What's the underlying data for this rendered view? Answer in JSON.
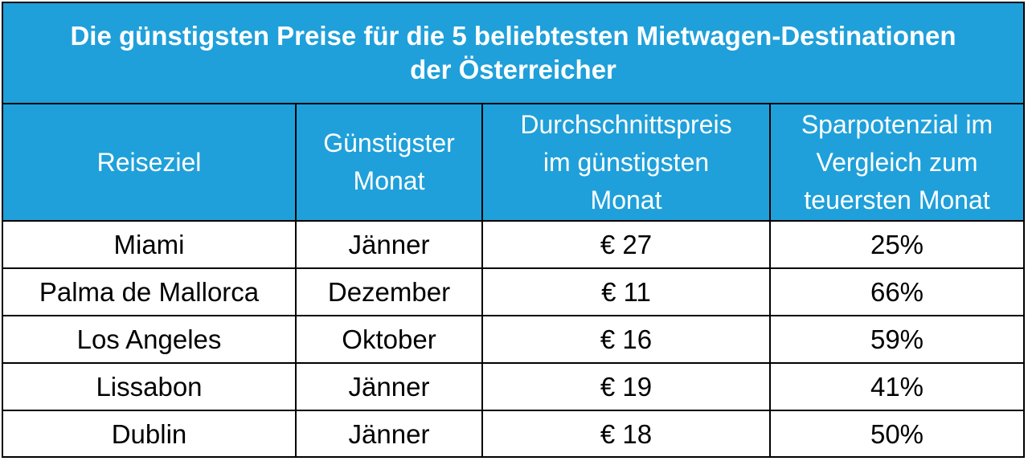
{
  "title": {
    "line1": "Die günstigsten Preise für die 5 beliebtesten Mietwagen-Destinationen",
    "line2": "der Österreicher"
  },
  "columns": [
    [
      "Reiseziel"
    ],
    [
      "Günstigster",
      "Monat"
    ],
    [
      "Durchschnittspreis",
      "im günstigsten",
      "Monat"
    ],
    [
      "Sparpotenzial im",
      "Vergleich zum",
      "teuersten Monat"
    ]
  ],
  "rows": [
    {
      "destination": "Miami",
      "month": "Jänner",
      "price": "€ 27",
      "savings": "25%"
    },
    {
      "destination": "Palma de Mallorca",
      "month": "Dezember",
      "price": "€ 11",
      "savings": "66%"
    },
    {
      "destination": "Los Angeles",
      "month": "Oktober",
      "price": "€ 16",
      "savings": "59%"
    },
    {
      "destination": "Lissabon",
      "month": "Jänner",
      "price": "€ 19",
      "savings": "41%"
    },
    {
      "destination": "Dublin",
      "month": "Jänner",
      "price": "€ 18",
      "savings": "50%"
    }
  ],
  "colors": {
    "header_bg": "#1fa0da",
    "header_text": "#ffffff",
    "border": "#000000"
  }
}
